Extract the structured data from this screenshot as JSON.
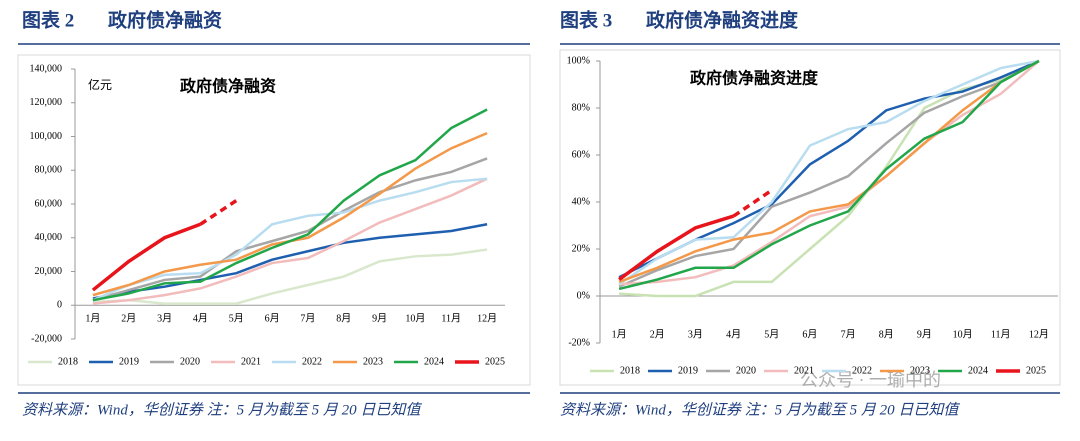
{
  "chart_data": [
    {
      "type": "line",
      "figure_number": "图表 2",
      "heading": "政府债净融资",
      "title": "政府债净融资",
      "unit": "亿元",
      "source": "资料来源：Wind，华创证券  注：5 月为截至 5 月 20 日已知值",
      "categories": [
        "1月",
        "2月",
        "3月",
        "4月",
        "5月",
        "6月",
        "7月",
        "8月",
        "9月",
        "10月",
        "11月",
        "12月"
      ],
      "ylim": [
        -20000,
        140000
      ],
      "yticks": [
        {
          "value": -20000,
          "label": "-20,000"
        },
        0,
        {
          "value": 20000,
          "label": "20,000"
        },
        {
          "value": 40000,
          "label": "40,000"
        },
        {
          "value": 60000,
          "label": "60,000"
        },
        {
          "value": 80000,
          "label": "80,000"
        },
        {
          "value": 100000,
          "label": "100,000"
        },
        {
          "value": 120000,
          "label": "120,000"
        },
        {
          "value": 140000,
          "label": "140,000"
        }
      ],
      "grid": false,
      "legend": "bottom",
      "series": [
        {
          "name": "2018",
          "color": "#d9e8cc",
          "values": [
            2000,
            3000,
            1000,
            1000,
            1000,
            7000,
            12000,
            17000,
            26000,
            29000,
            30000,
            33000
          ]
        },
        {
          "name": "2019",
          "color": "#1f5fb0",
          "values": [
            4000,
            8000,
            11000,
            15000,
            19000,
            27000,
            32000,
            37000,
            40000,
            42000,
            44000,
            48000
          ]
        },
        {
          "name": "2020",
          "color": "#a6a6a6",
          "values": [
            3000,
            9000,
            15000,
            17000,
            32000,
            38000,
            44000,
            56000,
            67000,
            74000,
            79000,
            87000
          ]
        },
        {
          "name": "2021",
          "color": "#f2bcbc",
          "values": [
            1000,
            3000,
            6000,
            10000,
            17000,
            25000,
            28000,
            38000,
            49000,
            57000,
            65000,
            75000
          ]
        },
        {
          "name": "2022",
          "color": "#b9ddf0",
          "values": [
            3000,
            12000,
            18000,
            19000,
            30000,
            48000,
            53000,
            55000,
            62000,
            67000,
            73000,
            75000
          ]
        },
        {
          "name": "2023",
          "color": "#f4984a",
          "values": [
            6000,
            12000,
            20000,
            24000,
            27000,
            36000,
            40000,
            52000,
            66000,
            81000,
            93000,
            102000
          ]
        },
        {
          "name": "2024",
          "color": "#22a64a",
          "values": [
            3000,
            7000,
            13000,
            14000,
            25000,
            34000,
            42000,
            62000,
            77000,
            86000,
            105000,
            116000
          ]
        },
        {
          "name": "2025",
          "color": "#e8141c",
          "dashed_last": true,
          "values": [
            9000,
            26000,
            40000,
            48000,
            62000,
            null,
            null,
            null,
            null,
            null,
            null,
            null
          ]
        }
      ]
    },
    {
      "type": "line",
      "figure_number": "图表 3",
      "heading": "政府债净融资进度",
      "title": "政府债净融资进度",
      "source": "资料来源：Wind，华创证券  注：5 月为截至 5 月 20 日已知值",
      "watermark": "公众号 · 一瑜中的",
      "categories": [
        "1月",
        "2月",
        "3月",
        "4月",
        "5月",
        "6月",
        "7月",
        "8月",
        "9月",
        "10月",
        "11月",
        "12月"
      ],
      "ylim": [
        -20,
        100
      ],
      "yticks": [
        {
          "value": -20,
          "label": "-20%"
        },
        {
          "value": 0,
          "label": "0%"
        },
        {
          "value": 20,
          "label": "20%"
        },
        {
          "value": 40,
          "label": "40%"
        },
        {
          "value": 60,
          "label": "60%"
        },
        {
          "value": 80,
          "label": "80%"
        },
        {
          "value": 100,
          "label": "100%"
        }
      ],
      "grid": false,
      "legend": "bottom",
      "series": [
        {
          "name": "2018",
          "color": "#c9e2b3",
          "values": [
            1,
            0,
            0,
            6,
            6,
            20,
            34,
            55,
            80,
            88,
            92,
            100
          ]
        },
        {
          "name": "2019",
          "color": "#1f5fb0",
          "values": [
            8,
            16,
            24,
            31,
            39,
            56,
            66,
            79,
            84,
            87,
            93,
            100
          ]
        },
        {
          "name": "2020",
          "color": "#a6a6a6",
          "values": [
            4,
            11,
            17,
            20,
            38,
            44,
            51,
            65,
            78,
            85,
            91,
            100
          ]
        },
        {
          "name": "2021",
          "color": "#f2bcbc",
          "values": [
            5,
            6,
            8,
            13,
            23,
            34,
            38,
            51,
            65,
            77,
            86,
            100
          ]
        },
        {
          "name": "2022",
          "color": "#b9ddf0",
          "values": [
            5,
            16,
            24,
            25,
            40,
            64,
            71,
            74,
            83,
            90,
            97,
            100
          ]
        },
        {
          "name": "2023",
          "color": "#f4984a",
          "values": [
            6,
            12,
            19,
            24,
            27,
            36,
            39,
            51,
            65,
            79,
            91,
            100
          ]
        },
        {
          "name": "2024",
          "color": "#22a64a",
          "values": [
            3,
            7,
            12,
            12,
            22,
            30,
            36,
            54,
            67,
            74,
            91,
            100
          ]
        },
        {
          "name": "2025",
          "color": "#e8141c",
          "dashed_last": true,
          "values": [
            7,
            19,
            29,
            34,
            45,
            null,
            null,
            null,
            null,
            null,
            null,
            null
          ]
        }
      ]
    }
  ]
}
